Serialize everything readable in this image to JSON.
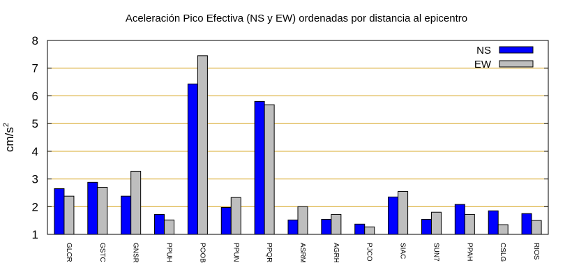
{
  "chart_data": {
    "type": "bar",
    "title": "Aceleración Pico Efectiva (NS y EW) ordenadas por distancia al epicentro",
    "xlabel": "",
    "ylabel": "cm/s²",
    "ylabel_base": "cm/s",
    "ylabel_exp": "2",
    "ylim": [
      1,
      8
    ],
    "yticks": [
      1,
      2,
      3,
      4,
      5,
      6,
      7,
      8
    ],
    "grid": true,
    "grid_color": "#d4a017",
    "legend_position": "top-right",
    "categories": [
      "GLCR",
      "GSTC",
      "GNSR",
      "PPUH",
      "POOB",
      "PPUN",
      "PPQR",
      "ASRM",
      "AGRH",
      "PJCO",
      "SIAC",
      "SUN7",
      "PPAH",
      "CSLG",
      "RIOS"
    ],
    "series": [
      {
        "name": "NS",
        "color": "#0000ff",
        "values": [
          2.65,
          2.88,
          2.38,
          1.72,
          6.43,
          1.97,
          5.8,
          1.52,
          1.54,
          1.37,
          2.35,
          1.54,
          2.08,
          1.85,
          1.75
        ]
      },
      {
        "name": "EW",
        "color": "#bebebe",
        "values": [
          2.38,
          2.7,
          3.28,
          1.52,
          7.45,
          2.33,
          5.68,
          2.0,
          1.72,
          1.27,
          2.55,
          1.8,
          1.72,
          1.35,
          1.5
        ]
      }
    ]
  }
}
